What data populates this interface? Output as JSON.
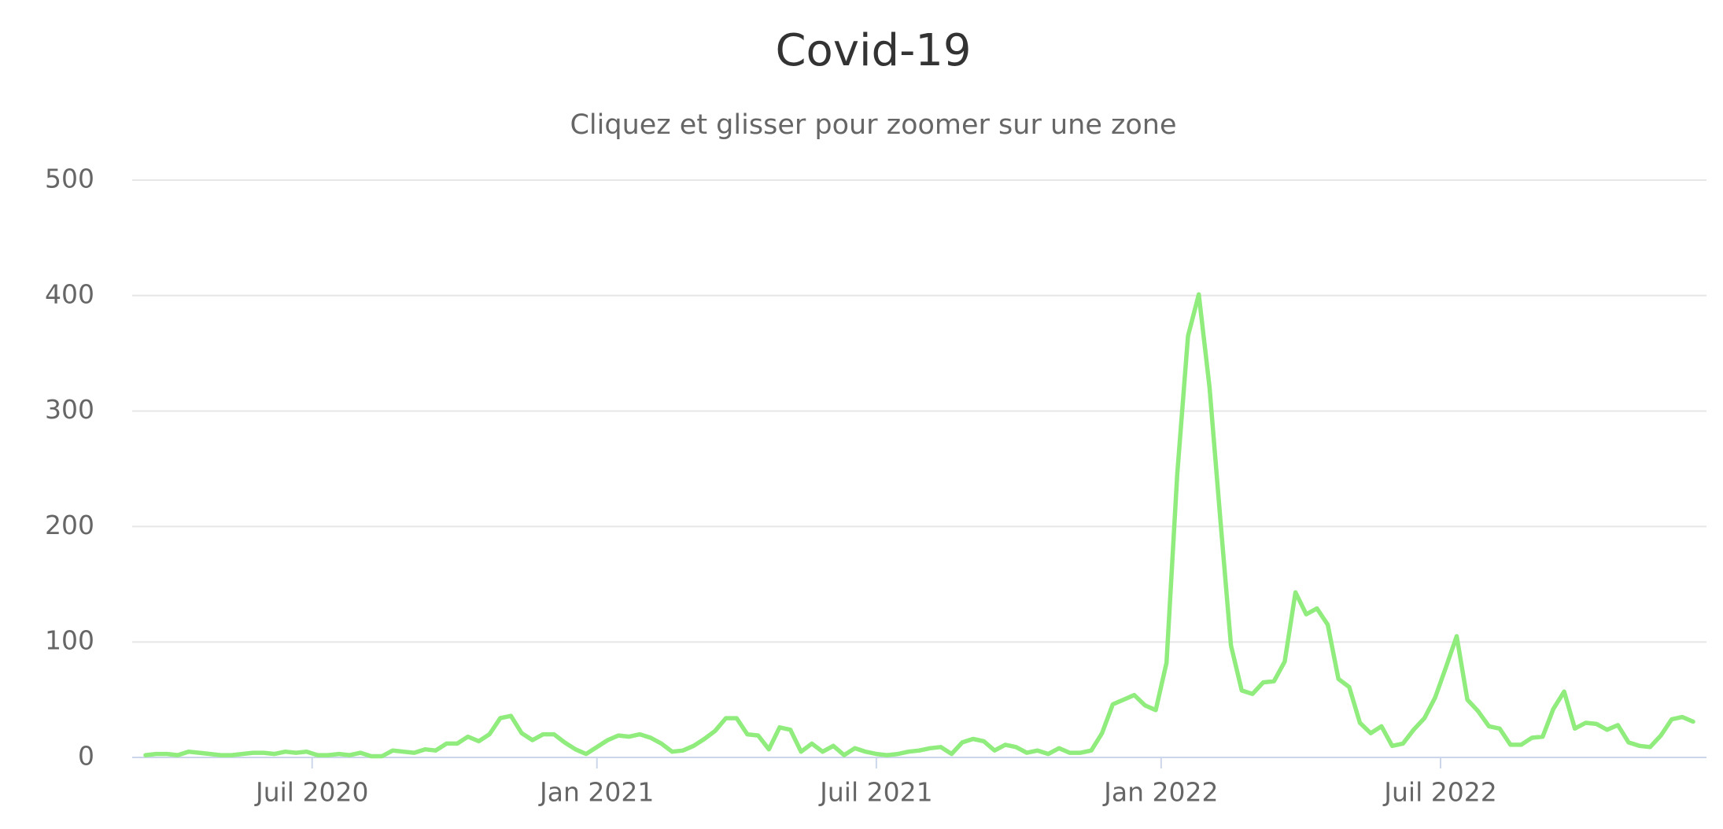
{
  "chart_data": {
    "type": "line",
    "title": "Covid-19",
    "subtitle": "Cliquez et glisser pour zoomer sur une zone",
    "categories": [
      null,
      null,
      null,
      null,
      null,
      null,
      null,
      null,
      null,
      null,
      null,
      null,
      null,
      null,
      null,
      null,
      null,
      null,
      null,
      null,
      null,
      null,
      null,
      null,
      null,
      null,
      null,
      null,
      null,
      null,
      null,
      null,
      null,
      null,
      null,
      null,
      null,
      null,
      null,
      null,
      null,
      null,
      null,
      null,
      null,
      null,
      null,
      null,
      null,
      null,
      null,
      null,
      null,
      null,
      null,
      null,
      null,
      null,
      null,
      null,
      null,
      null,
      null,
      null,
      null,
      null,
      null,
      null,
      null,
      null,
      null,
      null,
      null,
      null,
      null,
      null,
      null,
      null,
      null,
      null,
      null,
      null,
      null,
      null,
      null,
      null,
      null,
      null,
      null,
      null,
      null,
      null,
      null,
      null,
      null,
      null,
      null,
      null,
      null,
      null,
      null,
      null,
      null,
      null,
      null,
      null,
      null,
      null,
      null,
      null,
      null,
      null,
      null,
      null,
      null,
      null,
      null,
      null,
      null,
      null,
      null,
      null,
      null,
      null,
      null,
      null,
      null,
      null,
      null,
      null,
      null,
      null,
      null,
      null,
      null,
      null,
      null,
      null,
      null,
      null,
      null,
      null,
      null,
      null,
      null
    ],
    "values": [
      2,
      3,
      3,
      2,
      5,
      4,
      3,
      2,
      2,
      3,
      4,
      4,
      3,
      5,
      4,
      5,
      2,
      2,
      3,
      2,
      4,
      1,
      1,
      6,
      5,
      4,
      7,
      6,
      12,
      12,
      18,
      14,
      20,
      34,
      36,
      21,
      15,
      20,
      20,
      13,
      7,
      3,
      9,
      15,
      19,
      18,
      20,
      17,
      12,
      5,
      6,
      10,
      16,
      23,
      34,
      34,
      20,
      19,
      7,
      26,
      24,
      5,
      12,
      5,
      10,
      2,
      8,
      5,
      3,
      2,
      3,
      5,
      6,
      8,
      9,
      3,
      13,
      16,
      14,
      6,
      11,
      9,
      4,
      6,
      3,
      8,
      4,
      4,
      6,
      21,
      46,
      50,
      54,
      45,
      41,
      82,
      245,
      365,
      401,
      321,
      207,
      97,
      58,
      55,
      65,
      66,
      83,
      143,
      124,
      129,
      115,
      68,
      61,
      30,
      21,
      27,
      10,
      12,
      24,
      34,
      52,
      78,
      105,
      50,
      40,
      27,
      25,
      11,
      11,
      17,
      18,
      42,
      57,
      25,
      30,
      29,
      24,
      28,
      13,
      10,
      9,
      19,
      33,
      35,
      31
    ],
    "color": "#90ed7d",
    "ylim": [
      0,
      500
    ],
    "yticks": [
      0,
      100,
      200,
      300,
      400,
      500
    ],
    "xticks": [
      {
        "value": 15.5,
        "label": "Juil 2020"
      },
      {
        "value": 42,
        "label": "Jan 2021"
      },
      {
        "value": 68,
        "label": "Juil 2021"
      },
      {
        "value": 94.5,
        "label": "Jan 2022"
      },
      {
        "value": 120.5,
        "label": "Juil 2022"
      }
    ],
    "grid": true
  }
}
